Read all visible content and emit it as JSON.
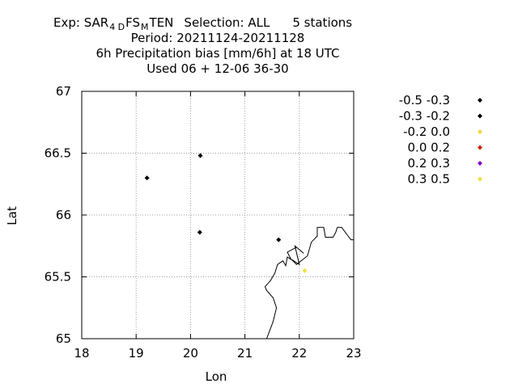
{
  "chart_data": {
    "type": "scatter",
    "title": {
      "line1": {
        "prefix": "Exp: SAR",
        "sub1": "4 D",
        "mid": "FS",
        "sub2": "M",
        "suffix": "TEN",
        "selection": "Selection: ALL",
        "stations": "5 stations"
      },
      "line2": "Period: 20211124-20211128",
      "line3": "6h Precipitation bias [mm/6h] at  18 UTC",
      "line4": "Used  06 + 12-06 36-30"
    },
    "xlabel": "Lon",
    "ylabel": "Lat",
    "xlim": [
      18,
      23
    ],
    "ylim": [
      65,
      67
    ],
    "grid": true,
    "x_ticks": [
      18,
      19,
      20,
      21,
      22,
      23
    ],
    "x_tick_labels": [
      "18",
      "19",
      "20",
      "21",
      "22",
      "23"
    ],
    "y_ticks": [
      65,
      65.5,
      66,
      66.5,
      67
    ],
    "y_tick_labels": [
      "65",
      "65.5",
      "66",
      "66.5",
      "67"
    ],
    "legend_position": "right",
    "legend": [
      {
        "label": "-0.5 -0.3",
        "color": "#000000"
      },
      {
        "label": "-0.3 -0.2",
        "color": "#000000"
      },
      {
        "label": "-0.2 0.0",
        "color": "#f5d442"
      },
      {
        "label": "0.0 0.2",
        "color": "#cc2200"
      },
      {
        "label": "0.2 0.3",
        "color": "#7a00cc"
      },
      {
        "label": "0.3 0.5",
        "color": "#f0e040"
      }
    ],
    "points": [
      {
        "lon": 19.2,
        "lat": 66.3,
        "color": "#000000"
      },
      {
        "lon": 20.18,
        "lat": 66.48,
        "color": "#000000"
      },
      {
        "lon": 20.17,
        "lat": 65.86,
        "color": "#000000"
      },
      {
        "lon": 21.62,
        "lat": 65.8,
        "color": "#000000"
      },
      {
        "lon": 22.1,
        "lat": 65.55,
        "color": "#f0e040"
      }
    ],
    "coastline": [
      [
        21.4,
        65.0
      ],
      [
        21.52,
        65.14
      ],
      [
        21.58,
        65.25
      ],
      [
        21.52,
        65.33
      ],
      [
        21.4,
        65.39
      ],
      [
        21.37,
        65.42
      ],
      [
        21.47,
        65.47
      ],
      [
        21.55,
        65.53
      ],
      [
        21.6,
        65.6
      ],
      [
        21.7,
        65.63
      ],
      [
        21.75,
        65.59
      ],
      [
        21.78,
        65.66
      ],
      [
        21.85,
        65.64
      ],
      [
        21.78,
        65.7
      ],
      [
        21.95,
        65.74
      ],
      [
        22.08,
        65.69
      ],
      [
        21.92,
        65.75
      ],
      [
        22.0,
        65.6
      ],
      [
        21.86,
        65.64
      ],
      [
        21.95,
        65.6
      ],
      [
        22.15,
        65.67
      ],
      [
        22.22,
        65.78
      ],
      [
        22.33,
        65.83
      ],
      [
        22.33,
        65.9
      ],
      [
        22.45,
        65.9
      ],
      [
        22.48,
        65.82
      ],
      [
        22.62,
        65.82
      ],
      [
        22.67,
        65.86
      ],
      [
        22.7,
        65.9
      ],
      [
        22.78,
        65.9
      ],
      [
        22.88,
        65.84
      ],
      [
        22.95,
        65.8
      ],
      [
        23.0,
        65.8
      ]
    ]
  }
}
